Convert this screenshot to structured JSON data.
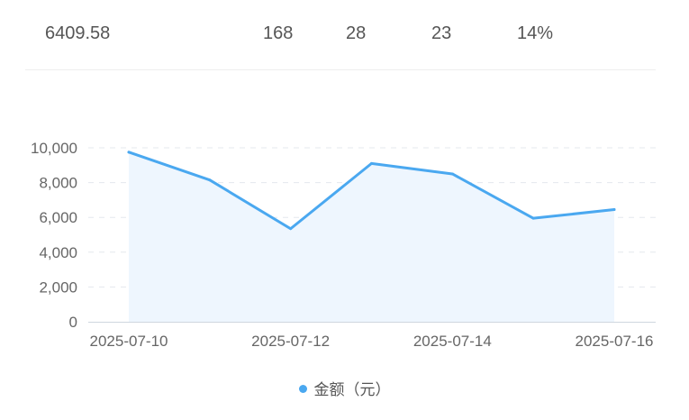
{
  "summary": {
    "total_amount": "6409.58",
    "stat_a": "168",
    "stat_b": "28",
    "stat_c": "23",
    "stat_d": "14%"
  },
  "colors": {
    "series": "#4aa8f0",
    "area": "#eef6fe",
    "grid": "#e4e8ee",
    "axis": "#cfd6df"
  },
  "chart_data": {
    "type": "area",
    "x": [
      "2025-07-10",
      "2025-07-11",
      "2025-07-12",
      "2025-07-13",
      "2025-07-14",
      "2025-07-15",
      "2025-07-16"
    ],
    "x_tick_labels": [
      "2025-07-10",
      "2025-07-12",
      "2025-07-14",
      "2025-07-16"
    ],
    "y_tick_labels": [
      "0",
      "2,000",
      "4,000",
      "6,000",
      "8,000",
      "10,000"
    ],
    "ylim": [
      0,
      10000
    ],
    "series": [
      {
        "name": "金额（元）",
        "values": [
          9750,
          8150,
          5350,
          9100,
          8500,
          5950,
          6450
        ]
      }
    ],
    "grid": true,
    "legend": "bottom-center"
  }
}
